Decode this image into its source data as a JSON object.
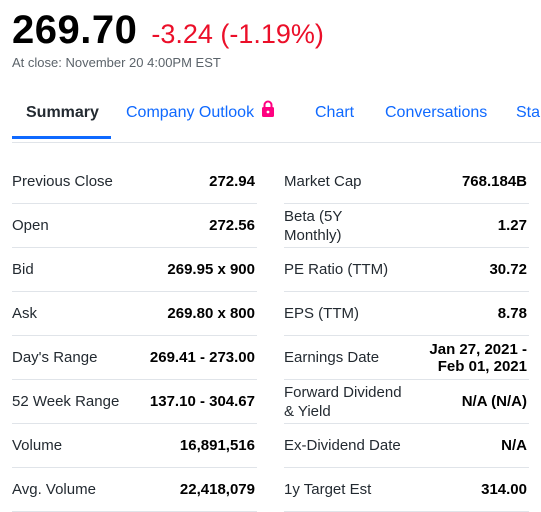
{
  "quote": {
    "price": "269.70",
    "change": "-3.24 (-1.19%)",
    "close_note": "At close: November 20 4:00PM EST"
  },
  "tabs": [
    {
      "label": "Summary",
      "active": true
    },
    {
      "label": "Company Outlook",
      "locked": true
    },
    {
      "label": "Chart"
    },
    {
      "label": "Conversations"
    },
    {
      "label": "Sta"
    }
  ],
  "icons": {
    "lock": "lock-icon",
    "lock_color": "#ff0080"
  },
  "colors": {
    "negative": "#eb0f29",
    "link": "#0f69ff",
    "divider": "#e0e4e9"
  },
  "stats_left": [
    {
      "label": "Previous Close",
      "value": "272.94"
    },
    {
      "label": "Open",
      "value": "272.56"
    },
    {
      "label": "Bid",
      "value": "269.95 x 900"
    },
    {
      "label": "Ask",
      "value": "269.80 x 800"
    },
    {
      "label": "Day's Range",
      "value": "269.41 - 273.00"
    },
    {
      "label": "52 Week Range",
      "value": "137.10 - 304.67"
    },
    {
      "label": "Volume",
      "value": "16,891,516"
    },
    {
      "label": "Avg. Volume",
      "value": "22,418,079"
    }
  ],
  "stats_right": [
    {
      "label": "Market Cap",
      "value": "768.184B"
    },
    {
      "label": "Beta (5Y Monthly)",
      "value": "1.27"
    },
    {
      "label": "PE Ratio (TTM)",
      "value": "30.72"
    },
    {
      "label": "EPS (TTM)",
      "value": "8.78"
    },
    {
      "label": "Earnings Date",
      "value": "Jan 27, 2021 - Feb 01, 2021"
    },
    {
      "label": "Forward Dividend & Yield",
      "value": "N/A (N/A)"
    },
    {
      "label": "Ex-Dividend Date",
      "value": "N/A"
    },
    {
      "label": "1y Target Est",
      "value": "314.00"
    }
  ]
}
